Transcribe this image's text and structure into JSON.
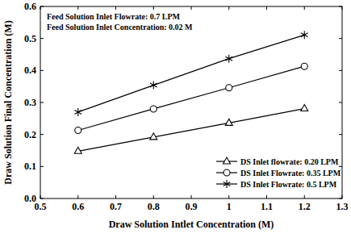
{
  "chart_data": {
    "type": "line",
    "x_label": "Draw Solution Intlet Concentration (M)",
    "y_label": "Draw Solution Final Concentration (M)",
    "annotations": [
      "Feed Solution Inlet Flowrate: 0.7 LPM",
      "Feed Solution Inlet Concentration: 0.02 M"
    ],
    "x": [
      0.6,
      0.8,
      1.0,
      1.2
    ],
    "series": [
      {
        "name": "DS Inlet flowrate: 0.20 LPM",
        "color": "#000000",
        "marker": "triangle",
        "values": [
          0.148,
          0.192,
          0.236,
          0.281
        ]
      },
      {
        "name": "DS Inlet Flowrate: 0.35 LPM",
        "color": "#000000",
        "marker": "circle",
        "values": [
          0.213,
          0.28,
          0.346,
          0.413
        ]
      },
      {
        "name": "DS Inlet Flowrate: 0.5 LPM",
        "color": "#000000",
        "marker": "star",
        "values": [
          0.27,
          0.354,
          0.437,
          0.511
        ]
      }
    ],
    "xlim": [
      0.5,
      1.3
    ],
    "xticks": [
      0.5,
      0.6,
      0.7,
      0.8,
      0.9,
      1,
      1.1,
      1.2,
      1.3
    ],
    "ylim": [
      0,
      0.6
    ],
    "yticks": [
      {
        "value": 0,
        "label": "0.0"
      },
      0.1,
      0.2,
      0.3,
      0.4,
      0.5,
      0.6
    ],
    "grid": false,
    "legend": "bottom-right"
  }
}
